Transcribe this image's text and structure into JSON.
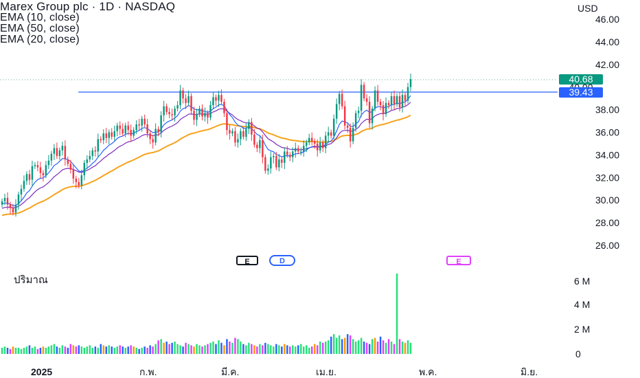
{
  "legend": {
    "title": "Marex Group plc · 1D · NASDAQ",
    "ema_labels": [
      "EMA (10, close)",
      "EMA (50, close)",
      "EMA (20, close)"
    ]
  },
  "currency": "USD",
  "volume_label": "ปริมาณ",
  "price_tags": {
    "last": "40.68",
    "level": "39.43",
    "partial": "40.00"
  },
  "events": {
    "earnings_past": "E",
    "dividend": "D",
    "earnings_future": "E"
  },
  "colors": {
    "up": "#089981",
    "down": "#f23645",
    "ema_fast": "#2962ff",
    "ema_mid": "#7b2cbf",
    "ema_slow": "#f7a21b",
    "hline": "#2962ff",
    "vol_up": "#26e07a",
    "vol_down": "#e040fb",
    "vol_blue": "#2962ff",
    "vol_orange": "#ff9800",
    "future_earn": "#e040fb"
  },
  "chart_data": {
    "type": "candlestick",
    "title": "Marex Group plc · 1D · NASDAQ",
    "x_ticks": [
      "2025",
      "ก.พ.",
      "มี.ค.",
      "เม.ย.",
      "พ.ค.",
      "มิ.ย."
    ],
    "price_ticks": [
      "46.00",
      "44.00",
      "42.00",
      "40.00",
      "38.00",
      "36.00",
      "34.00",
      "32.00",
      "30.00",
      "28.00",
      "26.00"
    ],
    "ylim": [
      25,
      46.5
    ],
    "volume_ticks": [
      "6 M",
      "4 M",
      "2 M",
      "0"
    ],
    "horizontal_line": 39.43,
    "last_price": 40.68,
    "close": [
      29.9,
      30.2,
      29.6,
      29.3,
      28.9,
      29.6,
      30.5,
      31.0,
      31.7,
      32.3,
      31.8,
      33.0,
      33.1,
      32.9,
      32.4,
      32.2,
      33.1,
      33.5,
      34.1,
      34.6,
      33.9,
      34.4,
      34.8,
      33.6,
      33.2,
      32.7,
      31.9,
      31.6,
      31.3,
      32.2,
      33.3,
      33.6,
      33.9,
      34.4,
      34.3,
      35.4,
      35.3,
      35.9,
      35.5,
      36.0,
      35.6,
      36.1,
      36.6,
      36.3,
      35.9,
      36.6,
      36.2,
      35.7,
      36.2,
      36.7,
      36.6,
      37.2,
      36.7,
      35.9,
      35.4,
      35.1,
      36.3,
      36.0,
      37.5,
      38.3,
      37.8,
      37.6,
      37.5,
      38.1,
      38.4,
      39.7,
      39.0,
      38.6,
      39.2,
      37.9,
      37.1,
      37.6,
      38.1,
      37.4,
      37.7,
      37.3,
      38.4,
      39.1,
      38.8,
      39.3,
      38.7,
      37.7,
      36.2,
      35.9,
      36.1,
      35.1,
      35.4,
      36.1,
      35.6,
      36.3,
      36.9,
      35.8,
      34.9,
      34.6,
      35.3,
      33.8,
      32.6,
      32.8,
      33.8,
      33.9,
      32.9,
      33.6,
      33.3,
      34.3,
      34.0,
      33.8,
      34.3,
      34.6,
      34.3,
      34.3,
      34.8,
      35.1,
      35.5,
      35.2,
      35.0,
      34.4,
      35.1,
      34.6,
      35.7,
      36.0,
      35.7,
      37.2,
      38.5,
      39.4,
      38.3,
      36.6,
      36.4,
      35.2,
      36.4,
      37.7,
      37.9,
      40.2,
      39.0,
      38.7,
      36.8,
      38.1,
      39.7,
      38.7,
      38.4,
      37.6,
      38.6,
      38.4,
      39.2,
      38.5,
      39.2,
      38.2,
      39.3,
      38.8,
      40.0,
      40.7
    ],
    "volume_millions": [
      0.5,
      0.6,
      0.5,
      0.4,
      0.6,
      0.5,
      0.5,
      0.4,
      0.5,
      0.6,
      0.7,
      0.5,
      0.6,
      0.4,
      0.5,
      0.6,
      0.5,
      0.6,
      0.7,
      0.8,
      0.6,
      0.5,
      0.7,
      0.6,
      0.5,
      0.8,
      0.7,
      0.6,
      0.7,
      0.6,
      0.5,
      0.6,
      0.7,
      0.5,
      0.6,
      0.5,
      0.8,
      0.7,
      0.6,
      0.7,
      0.6,
      0.5,
      0.6,
      0.7,
      0.6,
      0.5,
      0.6,
      0.7,
      0.6,
      0.5,
      0.4,
      0.5,
      0.6,
      0.5,
      0.7,
      0.6,
      0.8,
      1.1,
      1.2,
      0.9,
      1.0,
      0.8,
      0.9,
      1.0,
      0.8,
      0.7,
      0.6,
      0.9,
      0.8,
      0.7,
      0.6,
      0.8,
      0.7,
      0.6,
      0.7,
      0.8,
      0.9,
      1.0,
      0.8,
      1.1,
      0.9,
      0.7,
      1.2,
      1.0,
      0.9,
      1.3,
      1.2,
      1.0,
      0.8,
      0.7,
      0.9,
      0.8,
      0.7,
      0.6,
      0.8,
      0.7,
      0.9,
      0.8,
      0.7,
      0.6,
      0.8,
      0.7,
      0.6,
      0.8,
      0.7,
      0.6,
      0.7,
      0.6,
      0.7,
      0.8,
      0.6,
      0.7,
      0.5,
      0.6,
      0.8,
      0.7,
      1.0,
      0.9,
      1.0,
      1.1,
      1.4,
      1.6,
      1.3,
      1.5,
      1.2,
      1.3,
      1.6,
      1.5,
      1.2,
      1.0,
      1.1,
      1.3,
      1.0,
      0.9,
      0.8,
      1.2,
      1.3,
      1.0,
      1.4,
      1.1,
      0.9,
      1.2,
      1.0,
      0.8,
      6.5,
      1.2,
      1.0,
      0.9,
      1.1,
      0.9
    ]
  }
}
